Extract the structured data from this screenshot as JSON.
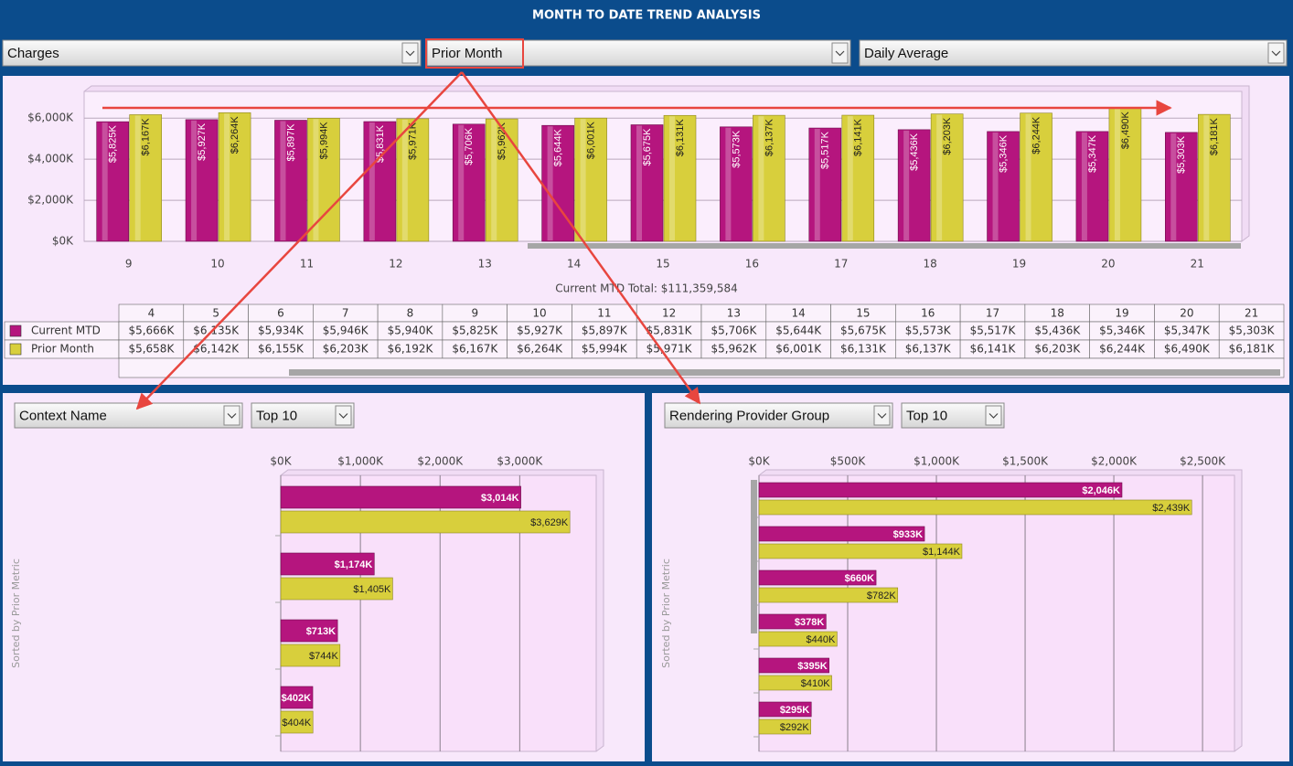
{
  "header": {
    "title": "MONTH TO DATE TREND ANALYSIS"
  },
  "controls": {
    "metric": "Charges",
    "comparison": "Prior Month",
    "aggregation": "Daily Average"
  },
  "chart_data": [
    {
      "type": "bar",
      "categories": [
        "9",
        "10",
        "11",
        "12",
        "13",
        "14",
        "15",
        "16",
        "17",
        "18",
        "19",
        "20",
        "21"
      ],
      "series": [
        {
          "name": "Current MTD",
          "color": "#b5157e",
          "values": [
            5825,
            5927,
            5897,
            5831,
            5706,
            5644,
            5675,
            5573,
            5517,
            5436,
            5346,
            5347,
            5303
          ],
          "value_labels": [
            "$5,825K",
            "$5,927K",
            "$5,897K",
            "$5,831K",
            "$5,706K",
            "$5,644K",
            "$5,675K",
            "$5,573K",
            "$5,517K",
            "$5,436K",
            "$5,346K",
            "$5,347K",
            "$5,303K"
          ]
        },
        {
          "name": "Prior Month",
          "color": "#d8cf3c",
          "values": [
            6167,
            6264,
            5994,
            5971,
            5962,
            6001,
            6131,
            6137,
            6141,
            6203,
            6244,
            6490,
            6181
          ],
          "value_labels": [
            "$6,167K",
            "$6,264K",
            "$5,994K",
            "$5,971K",
            "$5,962K",
            "$6,001K",
            "$6,131K",
            "$6,137K",
            "$6,141K",
            "$6,203K",
            "$6,244K",
            "$6,490K",
            "$6,181K"
          ]
        }
      ],
      "ylim": [
        0,
        7300
      ],
      "yticks": [
        {
          "value": 0,
          "label": "$0K"
        },
        {
          "value": 2000,
          "label": "$2,000K"
        },
        {
          "value": 4000,
          "label": "$4,000K"
        },
        {
          "value": 6000,
          "label": "$6,000K"
        }
      ],
      "grid": true,
      "annotation": "Current MTD Total: $111,359,584"
    },
    {
      "type": "hbar",
      "controls": [
        "Context Name",
        "Top 10"
      ],
      "ylabel": "Sorted by Prior Metric",
      "categories": [
        null,
        null,
        null,
        null
      ],
      "series": [
        {
          "color": "#b5157e",
          "values": [
            3014,
            1174,
            713,
            402
          ],
          "value_labels": [
            "$3,014K",
            "$1,174K",
            "$713K",
            "$402K"
          ]
        },
        {
          "color": "#d8cf3c",
          "values": [
            3629,
            1405,
            744,
            404
          ],
          "value_labels": [
            "$3,629K",
            "$1,405K",
            "$744K",
            "$404K"
          ]
        }
      ],
      "xlim": [
        0,
        3960
      ],
      "xticks": [
        {
          "value": 0,
          "label": "$0K"
        },
        {
          "value": 1000,
          "label": "$1,000K"
        },
        {
          "value": 2000,
          "label": "$2,000K"
        },
        {
          "value": 3000,
          "label": "$3,000K"
        }
      ],
      "grid": true
    },
    {
      "type": "hbar",
      "controls": [
        "Rendering Provider Group",
        "Top 10"
      ],
      "ylabel": "Sorted by Prior Metric",
      "categories": [
        null,
        null,
        null,
        null,
        null,
        null
      ],
      "series": [
        {
          "color": "#b5157e",
          "values": [
            2046,
            933,
            660,
            378,
            395,
            295
          ],
          "value_labels": [
            "$2,046K",
            "$933K",
            "$660K",
            "$378K",
            "$395K",
            "$295K"
          ]
        },
        {
          "color": "#d8cf3c",
          "values": [
            2439,
            1144,
            782,
            440,
            410,
            292
          ],
          "value_labels": [
            "$2,439K",
            "$1,144K",
            "$782K",
            "$440K",
            "$410K",
            "$292K"
          ]
        }
      ],
      "xlim": [
        0,
        2680
      ],
      "xticks": [
        {
          "value": 0,
          "label": "$0K"
        },
        {
          "value": 500,
          "label": "$500K"
        },
        {
          "value": 1000,
          "label": "$1,000K"
        },
        {
          "value": 1500,
          "label": "$1,500K"
        },
        {
          "value": 2000,
          "label": "$2,000K"
        },
        {
          "value": 2500,
          "label": "$2,500K"
        }
      ],
      "grid": true
    }
  ],
  "table": {
    "columns": [
      "4",
      "5",
      "6",
      "7",
      "8",
      "9",
      "10",
      "11",
      "12",
      "13",
      "14",
      "15",
      "16",
      "17",
      "18",
      "19",
      "20",
      "21"
    ],
    "rows": [
      [
        "$5,666K",
        "$6,135K",
        "$5,934K",
        "$5,946K",
        "$5,940K",
        "$5,825K",
        "$5,927K",
        "$5,897K",
        "$5,831K",
        "$5,706K",
        "$5,644K",
        "$5,675K",
        "$5,573K",
        "$5,517K",
        "$5,436K",
        "$5,346K",
        "$5,347K",
        "$5,303K"
      ],
      [
        "$5,658K",
        "$6,142K",
        "$6,155K",
        "$6,203K",
        "$6,192K",
        "$6,167K",
        "$6,264K",
        "$5,994K",
        "$5,971K",
        "$5,962K",
        "$6,001K",
        "$6,131K",
        "$6,137K",
        "$6,141K",
        "$6,203K",
        "$6,244K",
        "$6,490K",
        "$6,181K"
      ]
    ]
  }
}
